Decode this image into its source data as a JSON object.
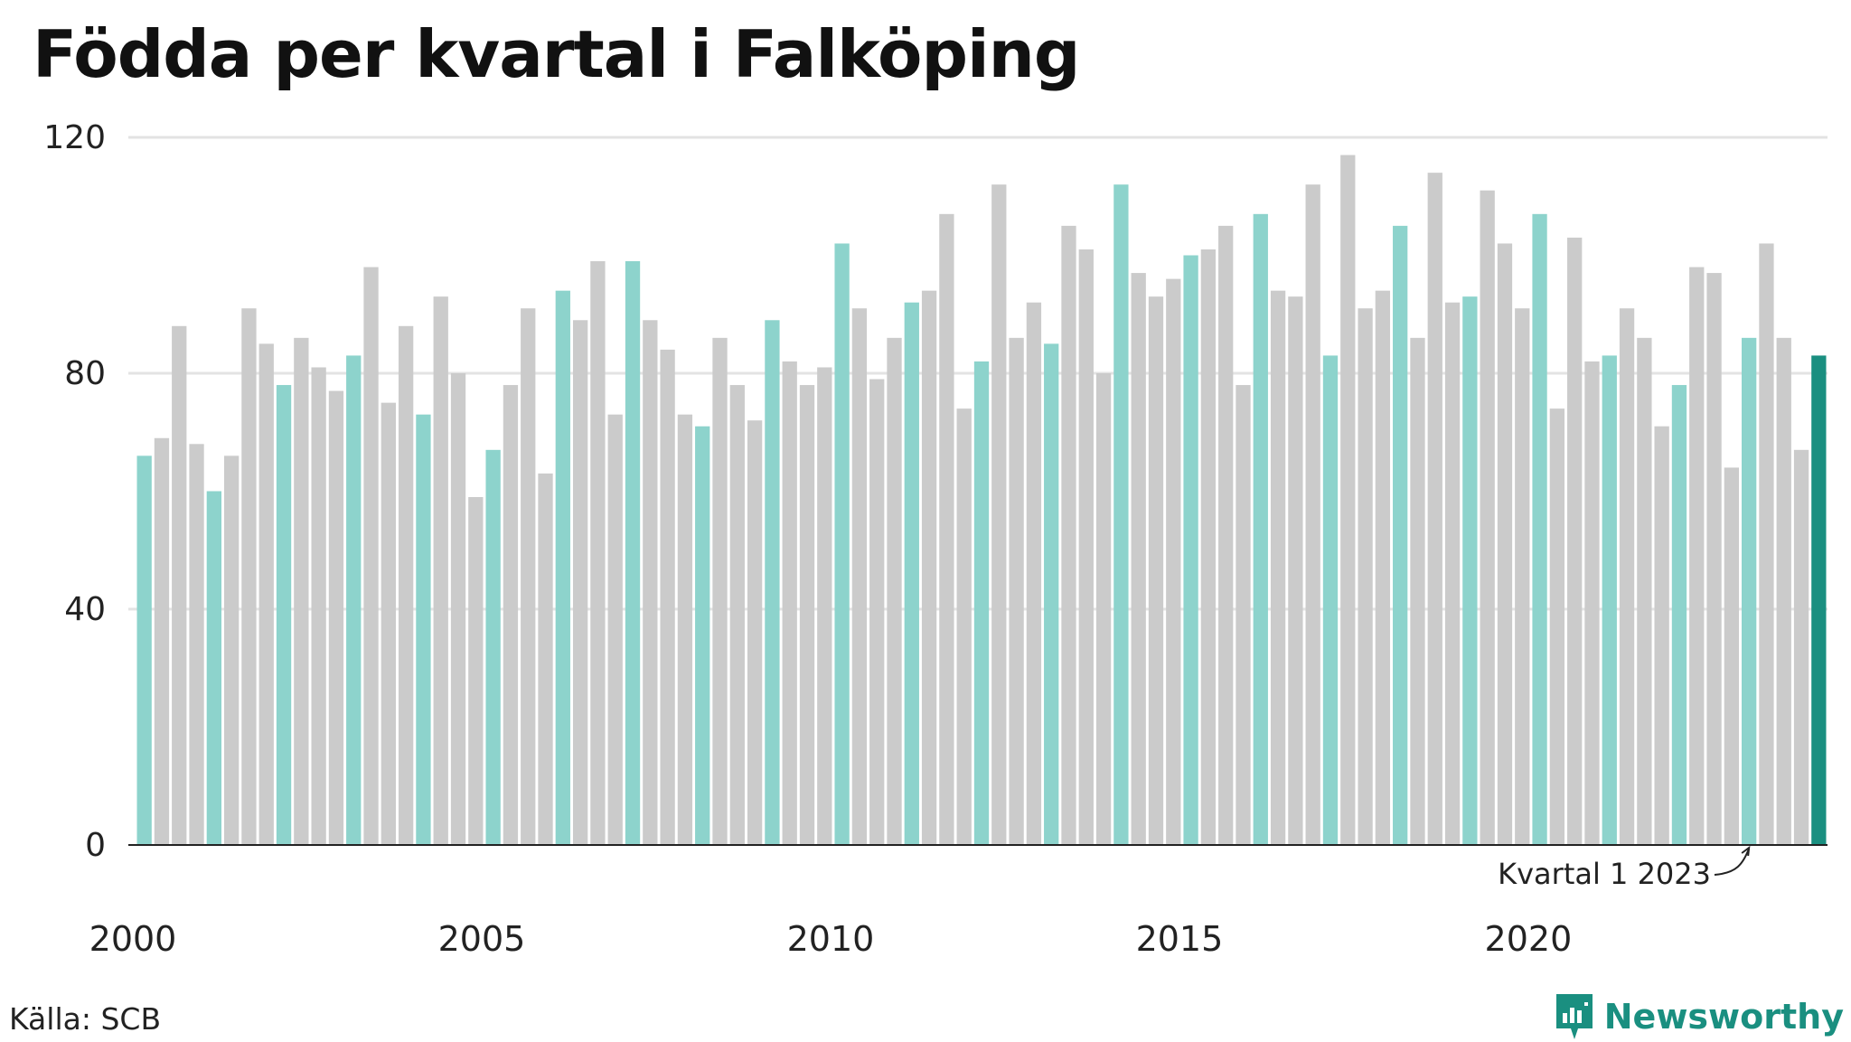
{
  "title": "Födda per kvartal i Falköping",
  "source": "Källa: SCB",
  "brand": "Newsworthy",
  "colors": {
    "q1": "#8dd3cc",
    "other": "#cbcbcb",
    "latest": "#1a8f80",
    "grid": "#e3e3e3",
    "axis": "#222222"
  },
  "chart_data": {
    "type": "bar",
    "title": "Födda per kvartal i Falköping",
    "xlabel": "",
    "ylabel": "",
    "ylim": [
      0,
      120
    ],
    "yticks": [
      "0",
      "40",
      "80",
      "120"
    ],
    "xticks": [
      "2000",
      "2005",
      "2010",
      "2015",
      "2020"
    ],
    "grid": true,
    "annotation": "Kvartal 1 2023",
    "categories": [
      "2000 Q1",
      "2000 Q2",
      "2000 Q3",
      "2000 Q4",
      "2001 Q1",
      "2001 Q2",
      "2001 Q3",
      "2001 Q4",
      "2002 Q1",
      "2002 Q2",
      "2002 Q3",
      "2002 Q4",
      "2003 Q1",
      "2003 Q2",
      "2003 Q3",
      "2003 Q4",
      "2004 Q1",
      "2004 Q2",
      "2004 Q3",
      "2004 Q4",
      "2005 Q1",
      "2005 Q2",
      "2005 Q3",
      "2005 Q4",
      "2006 Q1",
      "2006 Q2",
      "2006 Q3",
      "2006 Q4",
      "2007 Q1",
      "2007 Q2",
      "2007 Q3",
      "2007 Q4",
      "2008 Q1",
      "2008 Q2",
      "2008 Q3",
      "2008 Q4",
      "2009 Q1",
      "2009 Q2",
      "2009 Q3",
      "2009 Q4",
      "2010 Q1",
      "2010 Q2",
      "2010 Q3",
      "2010 Q4",
      "2011 Q1",
      "2011 Q2",
      "2011 Q3",
      "2011 Q4",
      "2012 Q1",
      "2012 Q2",
      "2012 Q3",
      "2012 Q4",
      "2013 Q1",
      "2013 Q2",
      "2013 Q3",
      "2013 Q4",
      "2014 Q1",
      "2014 Q2",
      "2014 Q3",
      "2014 Q4",
      "2015 Q1",
      "2015 Q2",
      "2015 Q3",
      "2015 Q4",
      "2016 Q1",
      "2016 Q2",
      "2016 Q3",
      "2016 Q4",
      "2017 Q1",
      "2017 Q2",
      "2017 Q3",
      "2017 Q4",
      "2018 Q1",
      "2018 Q2",
      "2018 Q3",
      "2018 Q4",
      "2019 Q1",
      "2019 Q2",
      "2019 Q3",
      "2019 Q4",
      "2020 Q1",
      "2020 Q2",
      "2020 Q3",
      "2020 Q4",
      "2021 Q1",
      "2021 Q2",
      "2021 Q3",
      "2021 Q4",
      "2022 Q1",
      "2022 Q2",
      "2022 Q3",
      "2022 Q4",
      "2023 Q1",
      "2023 Q2",
      "2023 Q3",
      "2023 Q4",
      "2024 Q1"
    ],
    "values": [
      66,
      69,
      88,
      68,
      60,
      66,
      91,
      85,
      78,
      86,
      81,
      77,
      83,
      98,
      75,
      88,
      73,
      93,
      80,
      59,
      67,
      78,
      91,
      63,
      94,
      89,
      99,
      73,
      99,
      89,
      84,
      73,
      71,
      86,
      78,
      72,
      89,
      82,
      78,
      81,
      102,
      91,
      79,
      86,
      92,
      94,
      107,
      74,
      82,
      112,
      86,
      92,
      85,
      105,
      101,
      80,
      112,
      97,
      93,
      96,
      100,
      101,
      105,
      78,
      107,
      94,
      93,
      112,
      83,
      117,
      91,
      94,
      105,
      86,
      114,
      92,
      93,
      111,
      102,
      91,
      107,
      74,
      103,
      82,
      83,
      91,
      86,
      71,
      78,
      98,
      97,
      64,
      86,
      102,
      86,
      67,
      83
    ]
  }
}
